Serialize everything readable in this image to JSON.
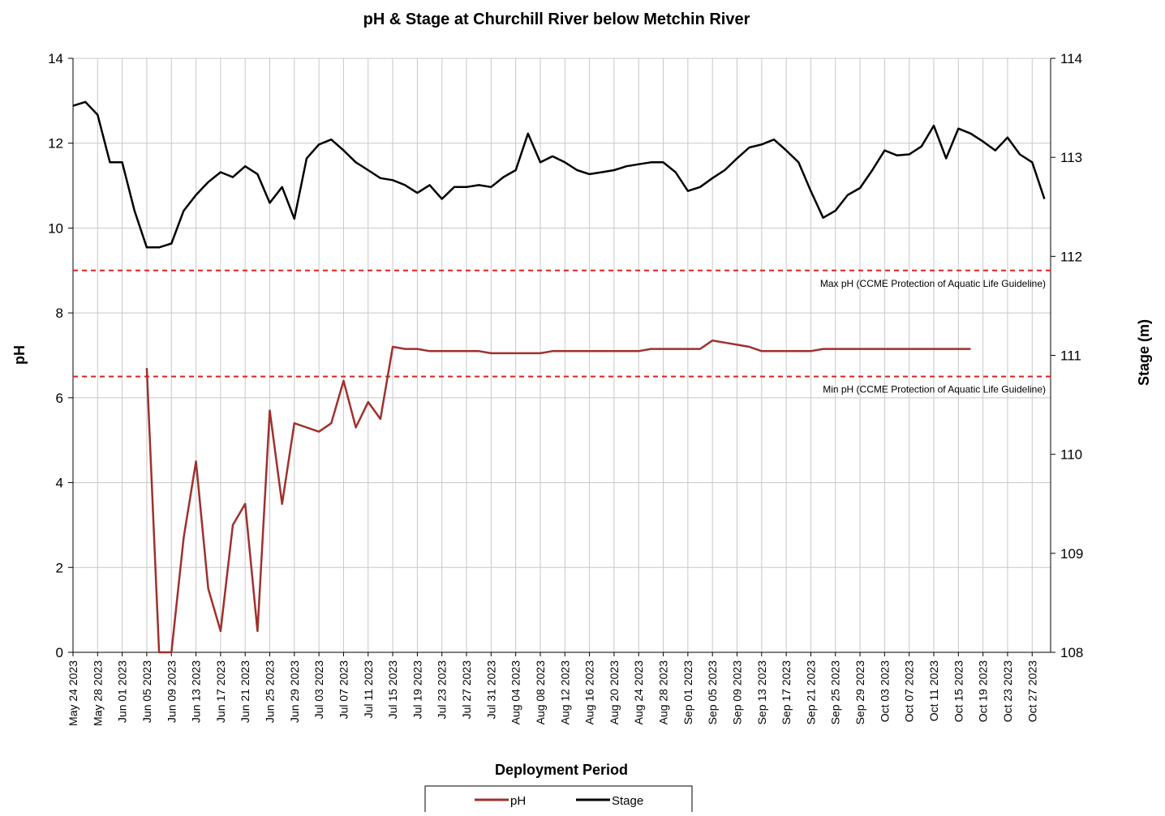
{
  "chart_data": {
    "type": "line",
    "title": "pH & Stage at Churchill River below Metchin River",
    "x_label": "Deployment Period",
    "y_label": "pH",
    "y2_label": "Stage (m)",
    "x": [
      "2023-05-24",
      "2023-05-26",
      "2023-05-28",
      "2023-05-30",
      "2023-06-01",
      "2023-06-03",
      "2023-06-05",
      "2023-06-07",
      "2023-06-09",
      "2023-06-11",
      "2023-06-13",
      "2023-06-15",
      "2023-06-17",
      "2023-06-19",
      "2023-06-21",
      "2023-06-23",
      "2023-06-25",
      "2023-06-27",
      "2023-06-29",
      "2023-07-01",
      "2023-07-03",
      "2023-07-05",
      "2023-07-07",
      "2023-07-09",
      "2023-07-11",
      "2023-07-13",
      "2023-07-15",
      "2023-07-17",
      "2023-07-19",
      "2023-07-21",
      "2023-07-23",
      "2023-07-25",
      "2023-07-27",
      "2023-07-29",
      "2023-07-31",
      "2023-08-02",
      "2023-08-04",
      "2023-08-06",
      "2023-08-08",
      "2023-08-10",
      "2023-08-12",
      "2023-08-14",
      "2023-08-16",
      "2023-08-18",
      "2023-08-20",
      "2023-08-22",
      "2023-08-24",
      "2023-08-26",
      "2023-08-28",
      "2023-08-30",
      "2023-09-01",
      "2023-09-03",
      "2023-09-05",
      "2023-09-07",
      "2023-09-09",
      "2023-09-11",
      "2023-09-13",
      "2023-09-15",
      "2023-09-17",
      "2023-09-19",
      "2023-09-21",
      "2023-09-23",
      "2023-09-25",
      "2023-09-27",
      "2023-09-29",
      "2023-10-01",
      "2023-10-03",
      "2023-10-05",
      "2023-10-07",
      "2023-10-09",
      "2023-10-11",
      "2023-10-13",
      "2023-10-15",
      "2023-10-17",
      "2023-10-19",
      "2023-10-21",
      "2023-10-23",
      "2023-10-25",
      "2023-10-27",
      "2023-10-29"
    ],
    "series": [
      {
        "name": "pH",
        "color": "#a0302c",
        "values": [
          null,
          null,
          null,
          null,
          null,
          null,
          6.7,
          0,
          0,
          2.7,
          4.5,
          1.5,
          0.5,
          3.0,
          3.5,
          0.5,
          5.7,
          3.5,
          5.4,
          5.3,
          5.2,
          5.4,
          6.4,
          5.3,
          5.9,
          5.5,
          7.2,
          7.15,
          7.15,
          7.1,
          7.1,
          7.1,
          7.1,
          7.1,
          7.05,
          7.05,
          7.05,
          7.05,
          7.05,
          7.1,
          7.1,
          7.1,
          7.1,
          7.1,
          7.1,
          7.1,
          7.1,
          7.15,
          7.15,
          7.15,
          7.15,
          7.15,
          7.35,
          7.3,
          7.25,
          7.2,
          7.1,
          7.1,
          7.1,
          7.1,
          7.1,
          7.15,
          7.15,
          7.15,
          7.15,
          7.15,
          7.15,
          7.15,
          7.15,
          7.15,
          7.15,
          7.15,
          7.15,
          7.15,
          null,
          null,
          null,
          null,
          null,
          null
        ]
      },
      {
        "name": "Stage",
        "color": "#000000",
        "axis": "y2",
        "values": [
          113.52,
          113.56,
          113.43,
          112.95,
          112.95,
          112.46,
          112.09,
          112.09,
          112.13,
          112.46,
          112.62,
          112.75,
          112.85,
          112.8,
          112.91,
          112.83,
          112.54,
          112.7,
          112.38,
          112.99,
          113.13,
          113.18,
          113.07,
          112.95,
          112.87,
          112.79,
          112.77,
          112.72,
          112.64,
          112.72,
          112.58,
          112.7,
          112.7,
          112.72,
          112.7,
          112.8,
          112.87,
          113.24,
          112.95,
          113.01,
          112.95,
          112.87,
          112.83,
          112.85,
          112.87,
          112.91,
          112.93,
          112.95,
          112.95,
          112.85,
          112.66,
          112.7,
          112.79,
          112.87,
          112.99,
          113.1,
          113.13,
          113.18,
          113.07,
          112.95,
          112.66,
          112.39,
          112.46,
          112.62,
          112.69,
          112.87,
          113.07,
          113.02,
          113.03,
          113.11,
          113.32,
          112.99,
          113.29,
          113.24,
          113.16,
          113.07,
          113.2,
          113.03,
          112.95,
          112.58
        ]
      }
    ],
    "xlim": [
      "2023-05-24",
      "2023-10-30"
    ],
    "xticks": [
      {
        "value": "2023-05-24",
        "label": "May 24 2023"
      },
      {
        "value": "2023-05-28",
        "label": "May 28 2023"
      },
      {
        "value": "2023-06-01",
        "label": "Jun 01 2023"
      },
      {
        "value": "2023-06-05",
        "label": "Jun 05 2023"
      },
      {
        "value": "2023-06-09",
        "label": "Jun 09 2023"
      },
      {
        "value": "2023-06-13",
        "label": "Jun 13 2023"
      },
      {
        "value": "2023-06-17",
        "label": "Jun 17 2023"
      },
      {
        "value": "2023-06-21",
        "label": "Jun 21 2023"
      },
      {
        "value": "2023-06-25",
        "label": "Jun 25 2023"
      },
      {
        "value": "2023-06-29",
        "label": "Jun 29 2023"
      },
      {
        "value": "2023-07-03",
        "label": "Jul 03 2023"
      },
      {
        "value": "2023-07-07",
        "label": "Jul 07 2023"
      },
      {
        "value": "2023-07-11",
        "label": "Jul 11 2023"
      },
      {
        "value": "2023-07-15",
        "label": "Jul 15 2023"
      },
      {
        "value": "2023-07-19",
        "label": "Jul 19 2023"
      },
      {
        "value": "2023-07-23",
        "label": "Jul 23 2023"
      },
      {
        "value": "2023-07-27",
        "label": "Jul 27 2023"
      },
      {
        "value": "2023-07-31",
        "label": "Jul 31 2023"
      },
      {
        "value": "2023-08-04",
        "label": "Aug 04 2023"
      },
      {
        "value": "2023-08-08",
        "label": "Aug 08 2023"
      },
      {
        "value": "2023-08-12",
        "label": "Aug 12 2023"
      },
      {
        "value": "2023-08-16",
        "label": "Aug 16 2023"
      },
      {
        "value": "2023-08-20",
        "label": "Aug 20 2023"
      },
      {
        "value": "2023-08-24",
        "label": "Aug 24 2023"
      },
      {
        "value": "2023-08-28",
        "label": "Aug 28 2023"
      },
      {
        "value": "2023-09-01",
        "label": "Sep 01 2023"
      },
      {
        "value": "2023-09-05",
        "label": "Sep 05 2023"
      },
      {
        "value": "2023-09-09",
        "label": "Sep 09 2023"
      },
      {
        "value": "2023-09-13",
        "label": "Sep 13 2023"
      },
      {
        "value": "2023-09-17",
        "label": "Sep 17 2023"
      },
      {
        "value": "2023-09-21",
        "label": "Sep 21 2023"
      },
      {
        "value": "2023-09-25",
        "label": "Sep 25 2023"
      },
      {
        "value": "2023-09-29",
        "label": "Sep 29 2023"
      },
      {
        "value": "2023-10-03",
        "label": "Oct 03 2023"
      },
      {
        "value": "2023-10-07",
        "label": "Oct 07 2023"
      },
      {
        "value": "2023-10-11",
        "label": "Oct 11 2023"
      },
      {
        "value": "2023-10-15",
        "label": "Oct 15 2023"
      },
      {
        "value": "2023-10-19",
        "label": "Oct 19 2023"
      },
      {
        "value": "2023-10-23",
        "label": "Oct 23 2023"
      },
      {
        "value": "2023-10-27",
        "label": "Oct 27 2023"
      }
    ],
    "ylim": [
      0,
      14
    ],
    "yticks": [
      0,
      2,
      4,
      6,
      8,
      10,
      12,
      14
    ],
    "y2lim": [
      108,
      114
    ],
    "y2ticks": [
      108,
      109,
      110,
      111,
      112,
      113,
      114
    ],
    "grid": true,
    "hlines": [
      {
        "value": 9,
        "label": "Max pH (CCME Protection of Aquatic Life Guideline)",
        "color": "#e02020"
      },
      {
        "value": 6.5,
        "label": "Min  pH (CCME Protection of Aquatic Life Guideline)",
        "color": "#e02020"
      }
    ],
    "legend": "bottom"
  }
}
